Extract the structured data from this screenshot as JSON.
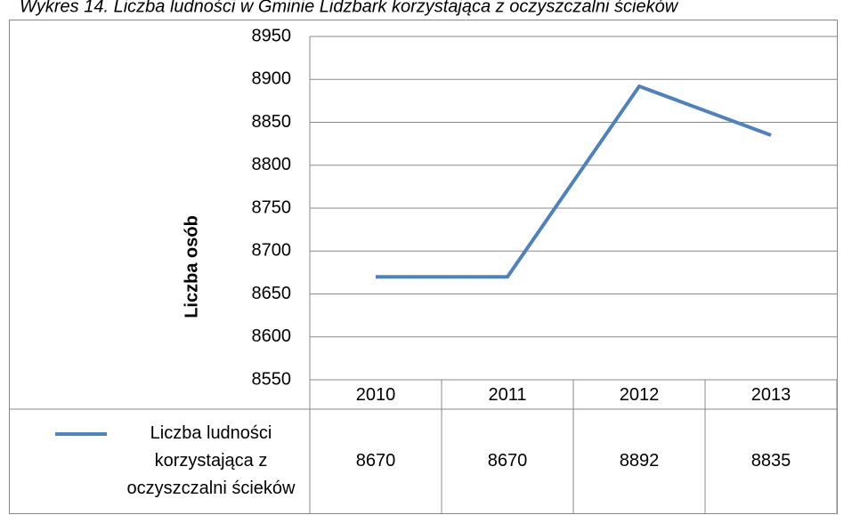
{
  "chart_data": {
    "type": "line",
    "title": "Wykres 14. Liczba ludności w Gminie Lidzbark korzystająca z oczyszczalni ścieków",
    "y_label": "Liczba osób",
    "categories": [
      "2010",
      "2011",
      "2012",
      "2013"
    ],
    "series": [
      {
        "name": "Liczba ludności korzystająca z oczyszczalni ścieków",
        "color": "#4f81bd",
        "values": [
          8670,
          8670,
          8892,
          8835
        ]
      }
    ],
    "ylim": [
      8550,
      8950
    ],
    "yticks": [
      8550,
      8600,
      8650,
      8700,
      8750,
      8800,
      8850,
      8900,
      8950
    ],
    "grid": true,
    "legend": "bottom"
  }
}
